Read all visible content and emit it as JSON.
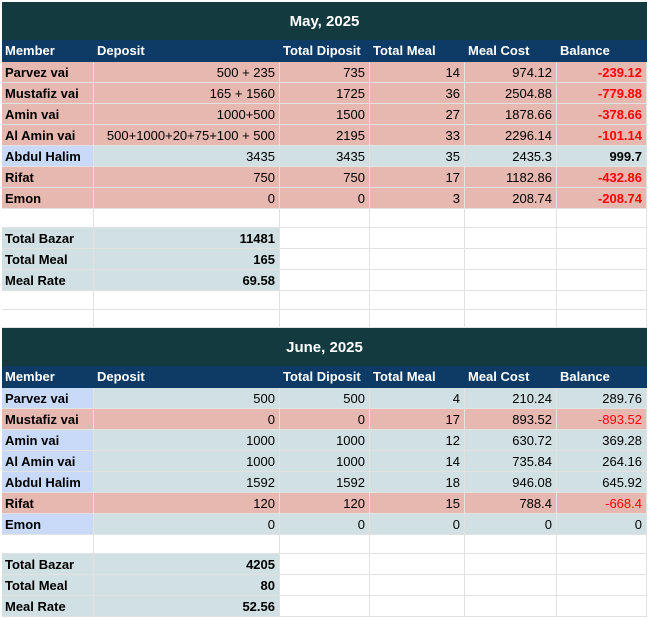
{
  "tables": [
    {
      "title": "May, 2025",
      "headers": [
        "Member",
        "Deposit",
        "Total Diposit",
        "Total Meal",
        "Meal Cost",
        "Balance"
      ],
      "rows": [
        {
          "member": "Parvez vai",
          "deposit": "500 + 235",
          "total_deposit": "735",
          "total_meal": "14",
          "meal_cost": "974.12",
          "balance": "-239.12",
          "status": "red",
          "name_color": "red"
        },
        {
          "member": "Mustafiz vai",
          "deposit": "165 + 1560",
          "total_deposit": "1725",
          "total_meal": "36",
          "meal_cost": "2504.88",
          "balance": "-779.88",
          "status": "red",
          "name_color": "red"
        },
        {
          "member": "Amin vai",
          "deposit": "1000+500",
          "total_deposit": "1500",
          "total_meal": "27",
          "meal_cost": "1878.66",
          "balance": "-378.66",
          "status": "red",
          "name_color": "red"
        },
        {
          "member": "Al Amin vai",
          "deposit": "500+1000+20+75+100 + 500",
          "total_deposit": "2195",
          "total_meal": "33",
          "meal_cost": "2296.14",
          "balance": "-101.14",
          "status": "red",
          "name_color": "red"
        },
        {
          "member": "Abdul Halim",
          "deposit": "3435",
          "total_deposit": "3435",
          "total_meal": "35",
          "meal_cost": "2435.3",
          "balance": "999.7",
          "status": "gray",
          "name_color": "blue"
        },
        {
          "member": "Rifat",
          "deposit": "750",
          "total_deposit": "750",
          "total_meal": "17",
          "meal_cost": "1182.86",
          "balance": "-432.86",
          "status": "red",
          "name_color": "red"
        },
        {
          "member": "Emon",
          "deposit": "0",
          "total_deposit": "0",
          "total_meal": "3",
          "meal_cost": "208.74",
          "balance": "-208.74",
          "status": "red",
          "name_color": "red"
        }
      ],
      "balance_bold": true,
      "summary": [
        {
          "label": "Total Bazar",
          "value": "11481"
        },
        {
          "label": "Total Meal",
          "value": "165"
        },
        {
          "label": "Meal Rate",
          "value": "69.58"
        }
      ]
    },
    {
      "title": "June, 2025",
      "headers": [
        "Member",
        "Deposit",
        "Total Diposit",
        "Total Meal",
        "Meal Cost",
        "Balance"
      ],
      "rows": [
        {
          "member": "Parvez vai",
          "deposit": "500",
          "total_deposit": "500",
          "total_meal": "4",
          "meal_cost": "210.24",
          "balance": "289.76",
          "status": "gray",
          "name_color": "blue"
        },
        {
          "member": "Mustafiz vai",
          "deposit": "0",
          "total_deposit": "0",
          "total_meal": "17",
          "meal_cost": "893.52",
          "balance": "-893.52",
          "status": "red",
          "name_color": "red"
        },
        {
          "member": "Amin vai",
          "deposit": "1000",
          "total_deposit": "1000",
          "total_meal": "12",
          "meal_cost": "630.72",
          "balance": "369.28",
          "status": "gray",
          "name_color": "blue"
        },
        {
          "member": "Al Amin vai",
          "deposit": "1000",
          "total_deposit": "1000",
          "total_meal": "14",
          "meal_cost": "735.84",
          "balance": "264.16",
          "status": "gray",
          "name_color": "blue"
        },
        {
          "member": "Abdul Halim",
          "deposit": "1592",
          "total_deposit": "1592",
          "total_meal": "18",
          "meal_cost": "946.08",
          "balance": "645.92",
          "status": "gray",
          "name_color": "blue"
        },
        {
          "member": "Rifat",
          "deposit": "120",
          "total_deposit": "120",
          "total_meal": "15",
          "meal_cost": "788.4",
          "balance": "-668.4",
          "status": "red",
          "name_color": "red"
        },
        {
          "member": "Emon",
          "deposit": "0",
          "total_deposit": "0",
          "total_meal": "0",
          "meal_cost": "0",
          "balance": "0",
          "status": "gray",
          "name_color": "blue"
        }
      ],
      "balance_bold": false,
      "summary": [
        {
          "label": "Total Bazar",
          "value": "4205"
        },
        {
          "label": "Total Meal",
          "value": "80"
        },
        {
          "label": "Meal Rate",
          "value": "52.56"
        }
      ]
    }
  ],
  "colors": {
    "title_bg": "#123a3f",
    "header_bg": "#0d3b66",
    "negative_row": "#e6b8b0",
    "member_name_blue": "#c9daf8",
    "positive_row": "#d0e0e3",
    "negative_text": "#ff0000"
  }
}
